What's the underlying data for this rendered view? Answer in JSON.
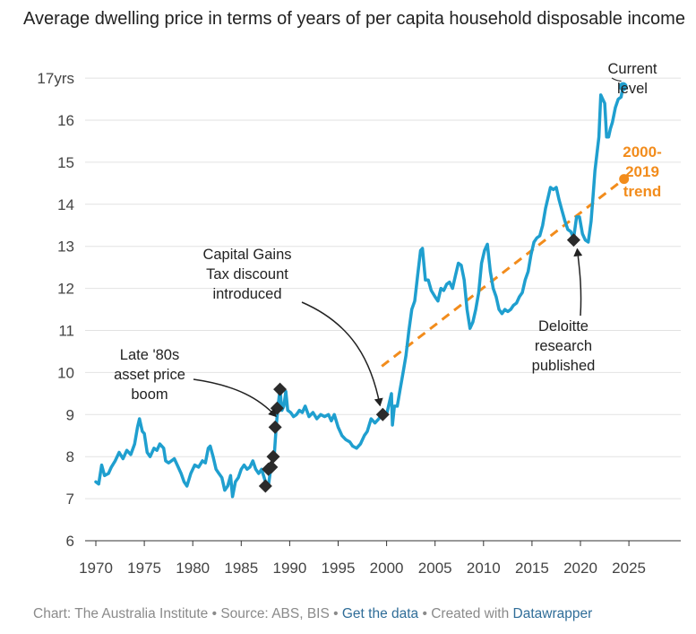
{
  "title": "Average dwelling price in terms of years of per capita household disposable income",
  "chart_data": {
    "type": "line",
    "title": "Average dwelling price in terms of years of per capita household disposable income",
    "xlabel": "",
    "ylabel": "",
    "xlim": [
      1970,
      2028
    ],
    "ylim": [
      6,
      17
    ],
    "x_ticks": [
      1970,
      1975,
      1980,
      1985,
      1990,
      1995,
      2000,
      2005,
      2010,
      2015,
      2020,
      2025
    ],
    "x_tick_labels": [
      "1970",
      "1975",
      "1980",
      "1985",
      "1990",
      "1995",
      "2000",
      "2005",
      "2010",
      "2015",
      "2020",
      "2025"
    ],
    "y_ticks": [
      6,
      7,
      8,
      9,
      10,
      11,
      12,
      13,
      14,
      15,
      16,
      17
    ],
    "y_tick_labels": [
      "6",
      "7",
      "8",
      "9",
      "10",
      "11",
      "12",
      "13",
      "14",
      "15",
      "16",
      "17yrs"
    ],
    "grid": "horizontal",
    "colors": {
      "main": "#1f9fcf",
      "trend": "#f28c1c",
      "marker": "#2b2b2b"
    },
    "series": [
      {
        "color": "#1f9fcf",
        "points": [
          [
            1970.0,
            7.4
          ],
          [
            1970.3,
            7.35
          ],
          [
            1970.6,
            7.8
          ],
          [
            1970.9,
            7.55
          ],
          [
            1971.3,
            7.6
          ],
          [
            1971.6,
            7.75
          ],
          [
            1972.0,
            7.9
          ],
          [
            1972.4,
            8.1
          ],
          [
            1972.8,
            7.95
          ],
          [
            1973.2,
            8.15
          ],
          [
            1973.6,
            8.05
          ],
          [
            1974.0,
            8.3
          ],
          [
            1974.3,
            8.7
          ],
          [
            1974.5,
            8.9
          ],
          [
            1974.8,
            8.6
          ],
          [
            1975.0,
            8.55
          ],
          [
            1975.3,
            8.1
          ],
          [
            1975.6,
            8.0
          ],
          [
            1976.0,
            8.2
          ],
          [
            1976.3,
            8.15
          ],
          [
            1976.6,
            8.3
          ],
          [
            1977.0,
            8.2
          ],
          [
            1977.2,
            7.9
          ],
          [
            1977.5,
            7.85
          ],
          [
            1977.8,
            7.9
          ],
          [
            1978.1,
            7.95
          ],
          [
            1978.4,
            7.8
          ],
          [
            1978.8,
            7.6
          ],
          [
            1979.1,
            7.4
          ],
          [
            1979.4,
            7.3
          ],
          [
            1979.8,
            7.6
          ],
          [
            1980.2,
            7.8
          ],
          [
            1980.6,
            7.75
          ],
          [
            1981.0,
            7.9
          ],
          [
            1981.3,
            7.85
          ],
          [
            1981.6,
            8.2
          ],
          [
            1981.8,
            8.25
          ],
          [
            1982.1,
            8.0
          ],
          [
            1982.4,
            7.7
          ],
          [
            1982.7,
            7.6
          ],
          [
            1983.0,
            7.5
          ],
          [
            1983.3,
            7.2
          ],
          [
            1983.6,
            7.3
          ],
          [
            1983.9,
            7.55
          ],
          [
            1984.1,
            7.05
          ],
          [
            1984.4,
            7.4
          ],
          [
            1984.7,
            7.5
          ],
          [
            1985.0,
            7.7
          ],
          [
            1985.3,
            7.8
          ],
          [
            1985.6,
            7.7
          ],
          [
            1985.9,
            7.75
          ],
          [
            1986.2,
            7.9
          ],
          [
            1986.5,
            7.7
          ],
          [
            1986.8,
            7.6
          ],
          [
            1987.1,
            7.7
          ],
          [
            1987.5,
            7.4
          ],
          [
            1987.8,
            7.3
          ],
          [
            1988.1,
            7.8
          ],
          [
            1988.4,
            8.0
          ],
          [
            1988.6,
            8.7
          ],
          [
            1988.8,
            9.2
          ],
          [
            1989.0,
            9.6
          ],
          [
            1989.2,
            9.1
          ],
          [
            1989.4,
            9.2
          ],
          [
            1989.6,
            9.55
          ],
          [
            1989.8,
            9.1
          ],
          [
            1990.1,
            9.05
          ],
          [
            1990.4,
            8.95
          ],
          [
            1990.7,
            9.0
          ],
          [
            1991.0,
            9.1
          ],
          [
            1991.3,
            9.05
          ],
          [
            1991.6,
            9.2
          ],
          [
            1992.0,
            8.95
          ],
          [
            1992.4,
            9.05
          ],
          [
            1992.8,
            8.9
          ],
          [
            1993.2,
            9.0
          ],
          [
            1993.6,
            8.95
          ],
          [
            1994.0,
            9.0
          ],
          [
            1994.3,
            8.85
          ],
          [
            1994.6,
            9.0
          ],
          [
            1995.0,
            8.7
          ],
          [
            1995.4,
            8.5
          ],
          [
            1995.8,
            8.4
          ],
          [
            1996.2,
            8.35
          ],
          [
            1996.5,
            8.25
          ],
          [
            1996.9,
            8.2
          ],
          [
            1997.3,
            8.3
          ],
          [
            1997.7,
            8.5
          ],
          [
            1998.0,
            8.6
          ],
          [
            1998.4,
            8.9
          ],
          [
            1998.8,
            8.8
          ],
          [
            1999.2,
            8.9
          ],
          [
            1999.6,
            9.05
          ],
          [
            2000.0,
            9.0
          ],
          [
            2000.3,
            9.3
          ],
          [
            2000.5,
            9.5
          ],
          [
            2000.6,
            8.75
          ],
          [
            2000.8,
            9.2
          ],
          [
            2001.1,
            9.2
          ],
          [
            2001.4,
            9.6
          ],
          [
            2001.7,
            10.0
          ],
          [
            2002.0,
            10.4
          ],
          [
            2002.3,
            11.0
          ],
          [
            2002.6,
            11.5
          ],
          [
            2002.9,
            11.7
          ],
          [
            2003.2,
            12.3
          ],
          [
            2003.5,
            12.9
          ],
          [
            2003.7,
            12.95
          ],
          [
            2004.0,
            12.2
          ],
          [
            2004.3,
            12.2
          ],
          [
            2004.6,
            11.95
          ],
          [
            2005.0,
            11.8
          ],
          [
            2005.3,
            11.7
          ],
          [
            2005.6,
            12.0
          ],
          [
            2005.9,
            11.95
          ],
          [
            2006.2,
            12.1
          ],
          [
            2006.5,
            12.15
          ],
          [
            2006.8,
            12.0
          ],
          [
            2007.1,
            12.3
          ],
          [
            2007.4,
            12.6
          ],
          [
            2007.7,
            12.55
          ],
          [
            2008.0,
            12.2
          ],
          [
            2008.3,
            11.5
          ],
          [
            2008.6,
            11.05
          ],
          [
            2008.9,
            11.2
          ],
          [
            2009.2,
            11.5
          ],
          [
            2009.5,
            11.9
          ],
          [
            2009.8,
            12.6
          ],
          [
            2010.1,
            12.9
          ],
          [
            2010.4,
            13.05
          ],
          [
            2010.7,
            12.4
          ],
          [
            2011.0,
            12.0
          ],
          [
            2011.3,
            11.8
          ],
          [
            2011.6,
            11.5
          ],
          [
            2011.9,
            11.4
          ],
          [
            2012.2,
            11.5
          ],
          [
            2012.5,
            11.45
          ],
          [
            2012.8,
            11.5
          ],
          [
            2013.1,
            11.6
          ],
          [
            2013.4,
            11.65
          ],
          [
            2013.7,
            11.8
          ],
          [
            2014.0,
            11.9
          ],
          [
            2014.3,
            12.2
          ],
          [
            2014.6,
            12.4
          ],
          [
            2014.9,
            12.8
          ],
          [
            2015.2,
            13.1
          ],
          [
            2015.5,
            13.2
          ],
          [
            2015.8,
            13.25
          ],
          [
            2016.1,
            13.5
          ],
          [
            2016.4,
            13.9
          ],
          [
            2016.7,
            14.2
          ],
          [
            2016.9,
            14.4
          ],
          [
            2017.2,
            14.35
          ],
          [
            2017.5,
            14.4
          ],
          [
            2017.8,
            14.1
          ],
          [
            2018.1,
            13.85
          ],
          [
            2018.4,
            13.6
          ],
          [
            2018.7,
            13.4
          ],
          [
            2019.0,
            13.35
          ],
          [
            2019.3,
            13.2
          ],
          [
            2019.6,
            13.7
          ],
          [
            2019.9,
            13.7
          ],
          [
            2020.2,
            13.3
          ],
          [
            2020.5,
            13.15
          ],
          [
            2020.8,
            13.1
          ],
          [
            2021.1,
            13.6
          ],
          [
            2021.3,
            14.2
          ],
          [
            2021.5,
            14.8
          ],
          [
            2021.7,
            15.2
          ],
          [
            2021.9,
            15.6
          ],
          [
            2022.1,
            16.6
          ],
          [
            2022.3,
            16.5
          ],
          [
            2022.5,
            16.4
          ],
          [
            2022.7,
            15.6
          ],
          [
            2022.9,
            15.6
          ],
          [
            2023.1,
            15.8
          ],
          [
            2023.3,
            15.95
          ],
          [
            2023.6,
            16.3
          ],
          [
            2023.9,
            16.5
          ],
          [
            2024.2,
            16.55
          ],
          [
            2024.4,
            16.8
          ]
        ]
      },
      {
        "name": "2000-2019 trend",
        "color": "#f28c1c",
        "style": "dashed",
        "points": [
          [
            1999.5,
            10.15
          ],
          [
            2024.5,
            14.6
          ]
        ]
      }
    ],
    "markers": [
      [
        1987.5,
        7.3
      ],
      [
        1987.8,
        7.7
      ],
      [
        1988.1,
        7.75
      ],
      [
        1988.3,
        8.0
      ],
      [
        1988.5,
        8.7
      ],
      [
        1988.7,
        9.15
      ],
      [
        1989.0,
        9.6
      ],
      [
        1999.6,
        9.0
      ],
      [
        2019.3,
        13.15
      ]
    ],
    "annotations": [
      {
        "lines": [
          "Current",
          "level"
        ],
        "x": 2024.4,
        "y": 16.8
      },
      {
        "lines": [
          "2000-",
          "2019",
          "trend"
        ],
        "x": 2024.5,
        "y": 14.6
      },
      {
        "lines": [
          "Capital Gains",
          "Tax discount",
          "introduced"
        ],
        "x": 1999.6,
        "y": 9.0
      },
      {
        "lines": [
          "Late '80s",
          "asset price",
          "boom"
        ],
        "x": 1988.5,
        "y": 8.7
      },
      {
        "lines": [
          "Deloitte",
          "research",
          "published"
        ],
        "x": 2019.3,
        "y": 13.15
      }
    ]
  },
  "footer": {
    "prefix": "Chart: The Australia Institute • Source: ABS, BIS • ",
    "link_data": "Get the data",
    "middle": " • Created with ",
    "link_tool": "Datawrapper"
  }
}
